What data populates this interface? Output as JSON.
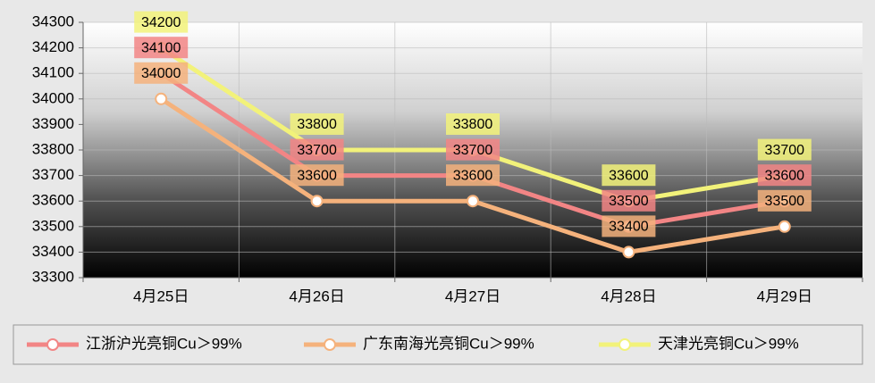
{
  "chart_data": {
    "type": "line",
    "categories": [
      "4月25日",
      "4月26日",
      "4月27日",
      "4月28日",
      "4月29日"
    ],
    "series": [
      {
        "name": "江浙沪光亮铜Cu＞99%",
        "color": "#f28585",
        "values": [
          34100,
          33700,
          33700,
          33500,
          33600
        ]
      },
      {
        "name": "广东南海光亮铜Cu＞99%",
        "color": "#f5b27c",
        "values": [
          34000,
          33600,
          33600,
          33400,
          33500
        ]
      },
      {
        "name": "天津光亮铜Cu＞99%",
        "color": "#f2f27a",
        "values": [
          34200,
          33800,
          33800,
          33600,
          33700
        ]
      }
    ],
    "ylim": [
      33300,
      34300
    ],
    "yticks": [
      33300,
      33400,
      33500,
      33600,
      33700,
      33800,
      33900,
      34000,
      34100,
      34200,
      34300
    ],
    "grid": true
  }
}
